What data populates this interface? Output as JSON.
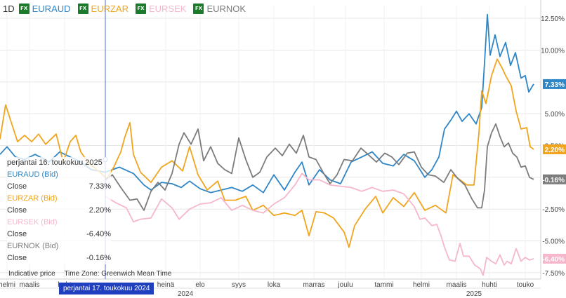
{
  "interval": "1D",
  "symbols": [
    {
      "label": "EURAUD",
      "color": "#2f86c6",
      "badge": "FX"
    },
    {
      "label": "EURZAR",
      "color": "#f0a51d",
      "badge": "FX"
    },
    {
      "label": "EURSEK",
      "color": "#f6b6cc",
      "badge": "FX"
    },
    {
      "label": "EURNOK",
      "color": "#7c7c7c",
      "badge": "FX"
    }
  ],
  "tooltip": {
    "date": "perjantai 16. toukokuu 2025",
    "close_label": "Close",
    "items": [
      {
        "name": "EURAUD (Bid)",
        "value": "7.33%",
        "color": "#2f86c6"
      },
      {
        "name": "EURZAR (Bid)",
        "value": "2.20%",
        "color": "#f0a51d"
      },
      {
        "name": "EURSEK (Bid)",
        "value": "-6.40%",
        "color": "#f6b6cc"
      },
      {
        "name": "EURNOK (Bid)",
        "value": "-0.16%",
        "color": "#7c7c7c"
      }
    ]
  },
  "footnote": {
    "price": "Indicative price",
    "timezone": "Time Zone: Greenwich Mean Time"
  },
  "crosshair_date": "perjantai 17. toukokuu 2024",
  "chart_data": {
    "type": "line",
    "x_labels": [
      "helmi",
      "maalis",
      "huht",
      "heinä",
      "elo",
      "syys",
      "loka",
      "marras",
      "joulu",
      "tammi",
      "helmi",
      "maalis",
      "huhti",
      "touko"
    ],
    "year_labels": [
      "2024",
      "2025"
    ],
    "y_ticks": [
      "12.50%",
      "10.00%",
      "7.50%",
      "5.00%",
      "2.50%",
      "0.00%",
      "-2.50%",
      "-5.00%",
      "-7.50%"
    ],
    "y_tick_values": [
      12.5,
      10,
      7.5,
      5,
      2.5,
      0,
      -2.5,
      -5,
      -7.5
    ],
    "ylim": [
      -8,
      13.5
    ],
    "last_labels": [
      "7.33%",
      "2.20%",
      "-6.40%",
      "-0.16%"
    ],
    "series": [
      {
        "name": "EURAUD",
        "color": "#2f86c6",
        "values": [
          [
            0,
            1.8
          ],
          [
            10,
            2.4
          ],
          [
            22,
            1.6
          ],
          [
            35,
            1.4
          ],
          [
            50,
            1.8
          ],
          [
            70,
            1.2
          ],
          [
            85,
            2.0
          ],
          [
            100,
            1.6
          ],
          [
            115,
            1.2
          ],
          [
            130,
            0.6
          ],
          [
            150,
            0.4
          ],
          [
            170,
            0.8
          ],
          [
            190,
            0.3
          ],
          [
            205,
            -0.6
          ],
          [
            215,
            -1.0
          ],
          [
            230,
            -0.4
          ],
          [
            245,
            -0.5
          ],
          [
            258,
            -0.8
          ],
          [
            270,
            -0.3
          ],
          [
            285,
            -0.9
          ],
          [
            300,
            -1.2
          ],
          [
            315,
            -1.0
          ],
          [
            330,
            -0.8
          ],
          [
            345,
            -1.1
          ],
          [
            360,
            -0.6
          ],
          [
            375,
            -1.2
          ],
          [
            390,
            0.2
          ],
          [
            405,
            -1.0
          ],
          [
            420,
            0.4
          ],
          [
            430,
            1.2
          ],
          [
            440,
            -0.6
          ],
          [
            455,
            0.6
          ],
          [
            470,
            -0.2
          ],
          [
            485,
            -0.5
          ],
          [
            500,
            1.2
          ],
          [
            515,
            1.6
          ],
          [
            530,
            2.0
          ],
          [
            545,
            1.1
          ],
          [
            560,
            0.9
          ],
          [
            575,
            1.8
          ],
          [
            590,
            1.3
          ],
          [
            605,
            0.0
          ],
          [
            615,
            0.6
          ],
          [
            625,
            1.6
          ],
          [
            633,
            3.8
          ],
          [
            642,
            4.5
          ],
          [
            650,
            5.2
          ],
          [
            658,
            4.4
          ],
          [
            668,
            5.0
          ],
          [
            678,
            4.2
          ],
          [
            686,
            5.5
          ],
          [
            690,
            9.0
          ],
          [
            694,
            12.8
          ],
          [
            698,
            9.6
          ],
          [
            705,
            11.2
          ],
          [
            712,
            9.5
          ],
          [
            720,
            10.6
          ],
          [
            727,
            8.8
          ],
          [
            734,
            9.8
          ],
          [
            742,
            7.8
          ],
          [
            748,
            8.0
          ],
          [
            753,
            6.7
          ],
          [
            760,
            7.33
          ]
        ]
      },
      {
        "name": "EURZAR",
        "color": "#f0a51d",
        "values": [
          [
            0,
            3.0
          ],
          [
            8,
            5.7
          ],
          [
            15,
            4.5
          ],
          [
            25,
            2.8
          ],
          [
            35,
            3.3
          ],
          [
            45,
            2.8
          ],
          [
            55,
            3.4
          ],
          [
            65,
            2.6
          ],
          [
            80,
            3.4
          ],
          [
            90,
            1.2
          ],
          [
            100,
            2.8
          ],
          [
            108,
            3.3
          ],
          [
            115,
            2.0
          ],
          [
            125,
            1.2
          ],
          [
            140,
            0.5
          ],
          [
            152,
            -0.1
          ],
          [
            162,
            0.8
          ],
          [
            172,
            2.0
          ],
          [
            178,
            3.2
          ],
          [
            185,
            4.3
          ],
          [
            190,
            1.8
          ],
          [
            200,
            0.4
          ],
          [
            215,
            -0.4
          ],
          [
            230,
            0.8
          ],
          [
            245,
            1.3
          ],
          [
            260,
            0.5
          ],
          [
            270,
            2.4
          ],
          [
            282,
            0.2
          ],
          [
            295,
            -1.0
          ],
          [
            310,
            -0.3
          ],
          [
            320,
            -1.8
          ],
          [
            335,
            -1.8
          ],
          [
            350,
            -1.5
          ],
          [
            360,
            -2.6
          ],
          [
            375,
            -2.2
          ],
          [
            390,
            -3.0
          ],
          [
            405,
            -2.8
          ],
          [
            420,
            -3.0
          ],
          [
            430,
            -2.6
          ],
          [
            440,
            -4.6
          ],
          [
            450,
            -2.7
          ],
          [
            462,
            -2.8
          ],
          [
            475,
            -3.2
          ],
          [
            490,
            -4.3
          ],
          [
            497,
            -5.5
          ],
          [
            505,
            -3.8
          ],
          [
            520,
            -2.5
          ],
          [
            535,
            -1.5
          ],
          [
            545,
            -2.8
          ],
          [
            560,
            -1.6
          ],
          [
            575,
            -2.3
          ],
          [
            590,
            -1.2
          ],
          [
            605,
            -2.6
          ],
          [
            620,
            -2.2
          ],
          [
            635,
            -2.8
          ],
          [
            645,
            0.2
          ],
          [
            655,
            -0.2
          ],
          [
            665,
            -0.6
          ],
          [
            675,
            -0.6
          ],
          [
            682,
            3.5
          ],
          [
            686,
            6.8
          ],
          [
            692,
            5.8
          ],
          [
            700,
            8.0
          ],
          [
            708,
            9.3
          ],
          [
            715,
            8.6
          ],
          [
            720,
            8.0
          ],
          [
            728,
            7.2
          ],
          [
            735,
            5.2
          ],
          [
            742,
            3.8
          ],
          [
            750,
            3.9
          ],
          [
            755,
            2.4
          ],
          [
            760,
            2.2
          ]
        ]
      },
      {
        "name": "EURSEK",
        "color": "#f6b6cc",
        "values": [
          [
            150,
            -1.5
          ],
          [
            165,
            -2.0
          ],
          [
            180,
            -2.4
          ],
          [
            190,
            -3.5
          ],
          [
            200,
            -3.3
          ],
          [
            215,
            -3.2
          ],
          [
            230,
            -1.7
          ],
          [
            245,
            -2.4
          ],
          [
            255,
            -3.3
          ],
          [
            270,
            -2.5
          ],
          [
            285,
            -2.1
          ],
          [
            300,
            -2.0
          ],
          [
            315,
            -1.6
          ],
          [
            330,
            -2.6
          ],
          [
            345,
            -2.2
          ],
          [
            360,
            -2.6
          ],
          [
            375,
            -2.8
          ],
          [
            390,
            -2.1
          ],
          [
            405,
            -1.6
          ],
          [
            420,
            -0.6
          ],
          [
            430,
            0.3
          ],
          [
            440,
            -0.2
          ],
          [
            455,
            -0.2
          ],
          [
            470,
            -0.6
          ],
          [
            485,
            -0.7
          ],
          [
            500,
            -0.8
          ],
          [
            515,
            -1.1
          ],
          [
            530,
            -0.8
          ],
          [
            545,
            -1.1
          ],
          [
            560,
            -1.0
          ],
          [
            575,
            -1.3
          ],
          [
            590,
            -2.3
          ],
          [
            598,
            -3.3
          ],
          [
            605,
            -3.2
          ],
          [
            615,
            -3.8
          ],
          [
            622,
            -3.7
          ],
          [
            628,
            -4.6
          ],
          [
            633,
            -5.5
          ],
          [
            640,
            -6.5
          ],
          [
            648,
            -6.6
          ],
          [
            655,
            -5.2
          ],
          [
            660,
            -6.2
          ],
          [
            668,
            -6.2
          ],
          [
            676,
            -6.9
          ],
          [
            684,
            -7.2
          ],
          [
            688,
            -7.7
          ],
          [
            693,
            -6.3
          ],
          [
            700,
            -6.6
          ],
          [
            706,
            -6.8
          ],
          [
            712,
            -6.1
          ],
          [
            718,
            -6.9
          ],
          [
            722,
            -6.6
          ],
          [
            728,
            -6.8
          ],
          [
            735,
            -5.6
          ],
          [
            742,
            -6.6
          ],
          [
            748,
            -6.3
          ],
          [
            754,
            -6.5
          ],
          [
            760,
            -6.4
          ]
        ]
      },
      {
        "name": "EURNOK",
        "color": "#7c7c7c",
        "values": [
          [
            150,
            -0.2
          ],
          [
            160,
            0.2
          ],
          [
            172,
            -0.8
          ],
          [
            185,
            -1.8
          ],
          [
            195,
            -1.7
          ],
          [
            205,
            -2.6
          ],
          [
            215,
            -1.1
          ],
          [
            225,
            -0.4
          ],
          [
            235,
            -1.0
          ],
          [
            245,
            0.3
          ],
          [
            255,
            2.6
          ],
          [
            262,
            3.5
          ],
          [
            272,
            2.6
          ],
          [
            282,
            3.8
          ],
          [
            290,
            1.3
          ],
          [
            300,
            2.4
          ],
          [
            310,
            1.1
          ],
          [
            320,
            0.6
          ],
          [
            330,
            0.3
          ],
          [
            340,
            3.1
          ],
          [
            350,
            1.4
          ],
          [
            360,
            0.0
          ],
          [
            370,
            0.4
          ],
          [
            380,
            1.6
          ],
          [
            392,
            2.3
          ],
          [
            402,
            1.7
          ],
          [
            412,
            2.6
          ],
          [
            422,
            1.9
          ],
          [
            432,
            3.3
          ],
          [
            440,
            1.6
          ],
          [
            450,
            1.4
          ],
          [
            460,
            0.4
          ],
          [
            470,
            -0.5
          ],
          [
            480,
            0.2
          ],
          [
            490,
            1.4
          ],
          [
            502,
            1.3
          ],
          [
            514,
            2.3
          ],
          [
            524,
            1.8
          ],
          [
            536,
            1.2
          ],
          [
            548,
            1.9
          ],
          [
            558,
            1.6
          ],
          [
            568,
            1.0
          ],
          [
            580,
            1.9
          ],
          [
            590,
            2.0
          ],
          [
            600,
            0.8
          ],
          [
            610,
            0.2
          ],
          [
            620,
            0.1
          ],
          [
            632,
            -0.4
          ],
          [
            642,
            0.6
          ],
          [
            652,
            -0.1
          ],
          [
            662,
            -0.6
          ],
          [
            672,
            -1.7
          ],
          [
            680,
            -2.4
          ],
          [
            686,
            -2.4
          ],
          [
            690,
            -1.0
          ],
          [
            694,
            2.4
          ],
          [
            700,
            3.5
          ],
          [
            706,
            4.2
          ],
          [
            712,
            3.2
          ],
          [
            718,
            2.4
          ],
          [
            724,
            2.7
          ],
          [
            730,
            1.9
          ],
          [
            736,
            1.6
          ],
          [
            742,
            0.8
          ],
          [
            748,
            0.9
          ],
          [
            754,
            0.0
          ],
          [
            760,
            -0.16
          ]
        ]
      }
    ]
  }
}
